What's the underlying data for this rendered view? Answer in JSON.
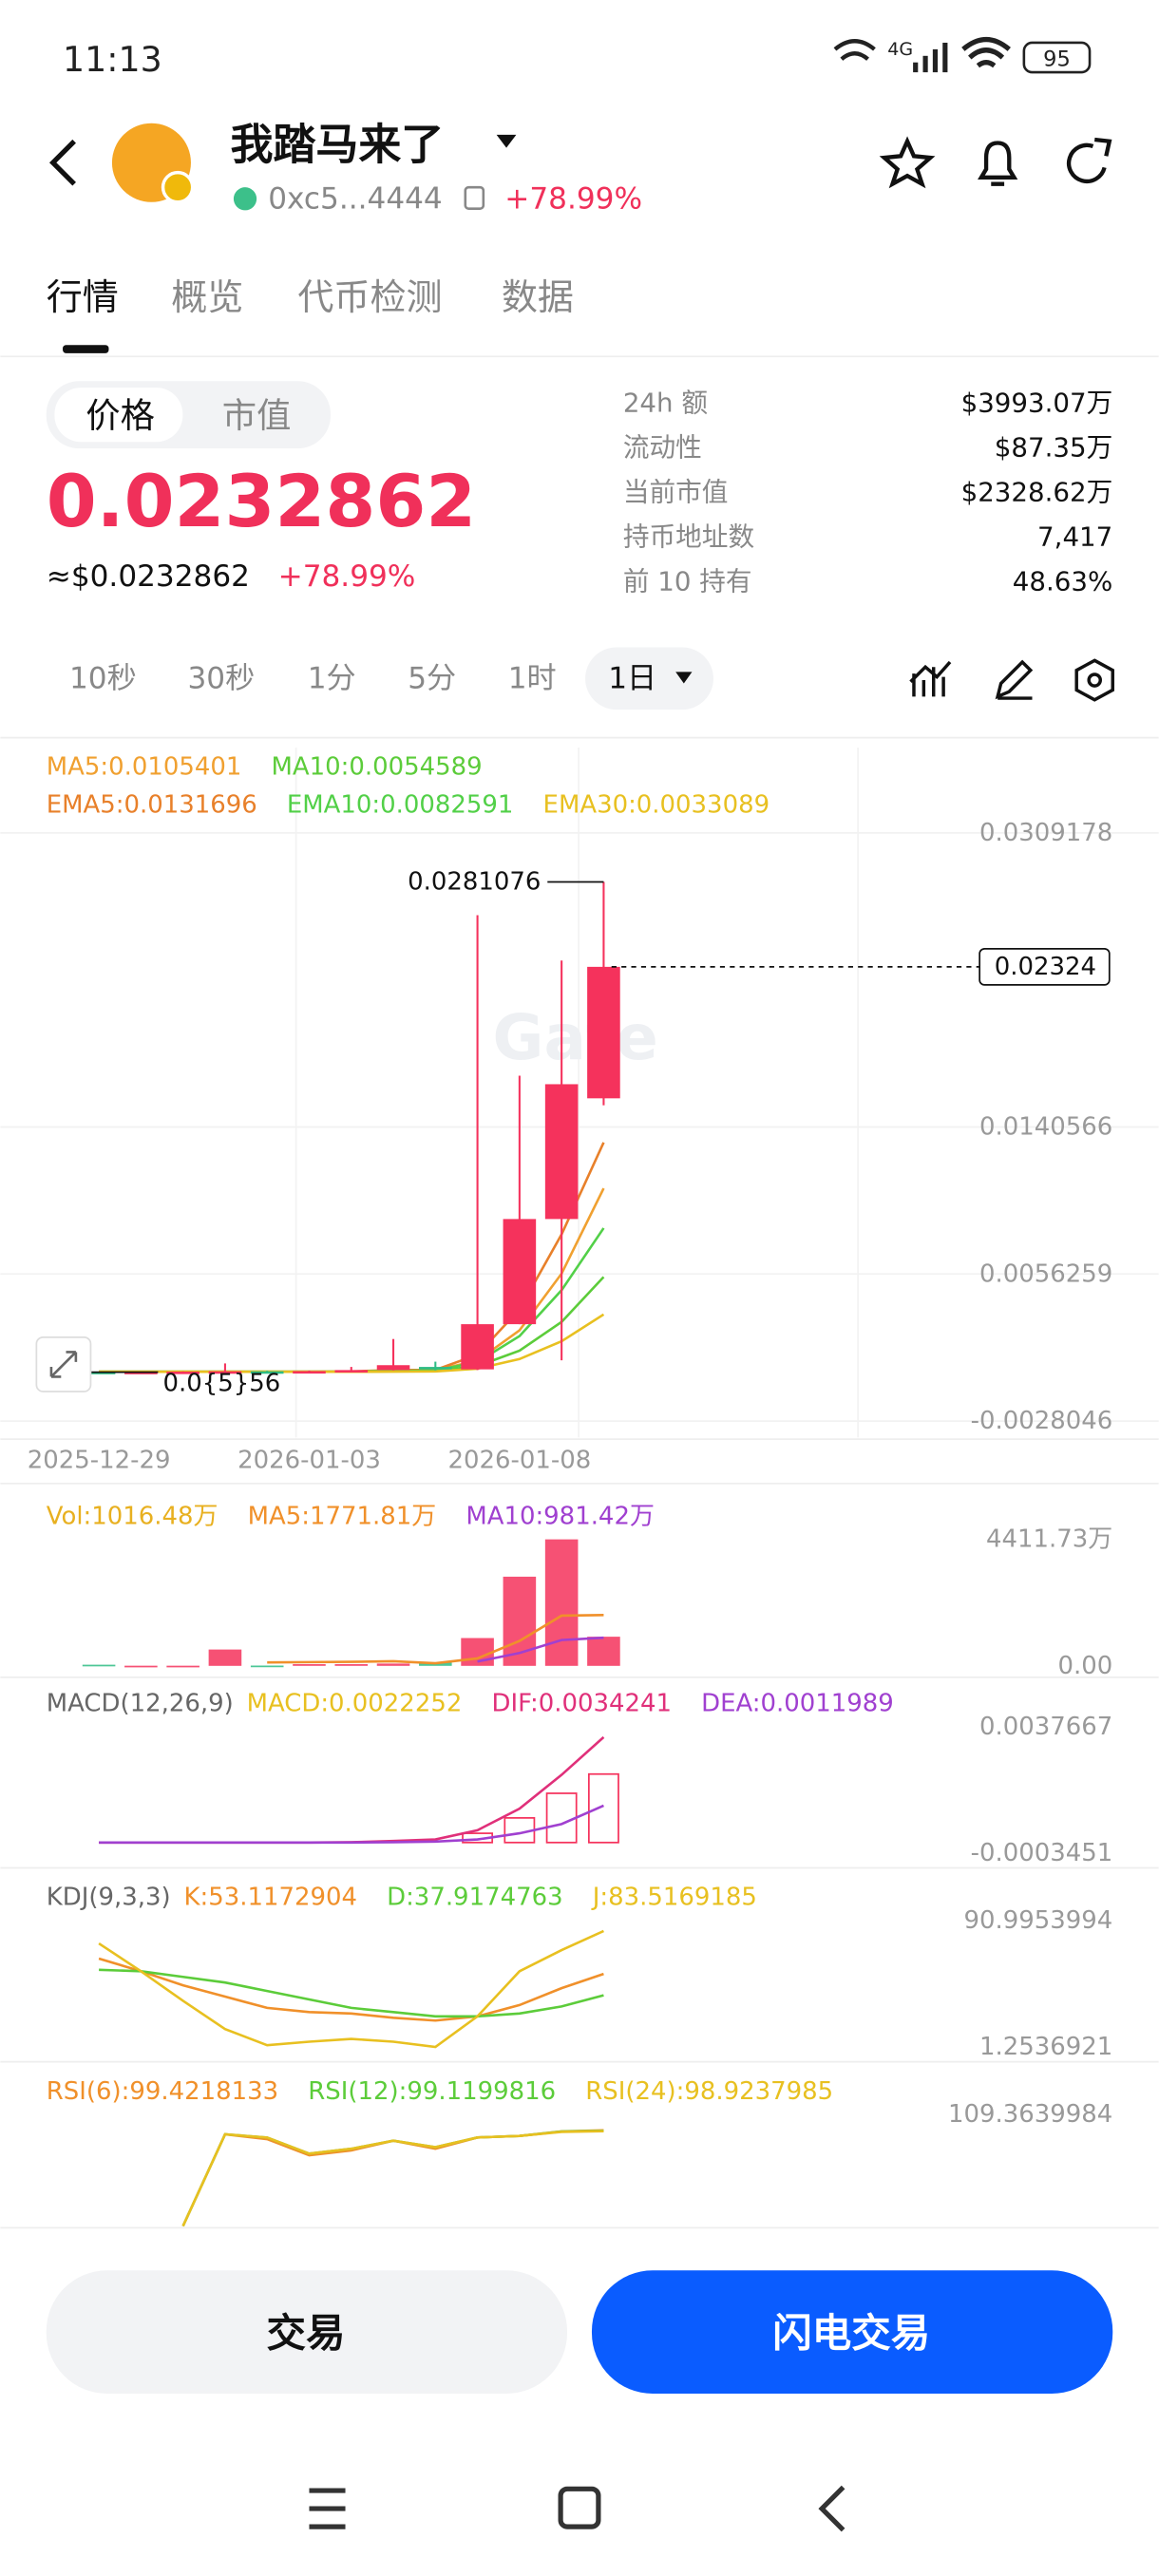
{
  "status_bar": {
    "time": "11:13",
    "network": "4G",
    "battery": "95"
  },
  "header": {
    "token_name": "我踏马来了",
    "address": "0xc5...4444",
    "change": "+78.99%"
  },
  "tabs": [
    "行情",
    "概览",
    "代币检测",
    "数据"
  ],
  "price_toggle": [
    "价格",
    "市值"
  ],
  "price": "0.0232862",
  "price_usd": "≈$0.0232862",
  "price_change": "+78.99%",
  "stats": [
    {
      "label": "24h  额",
      "value": "$3993.07万"
    },
    {
      "label": "流动性",
      "value": "$87.35万"
    },
    {
      "label": "当前市值",
      "value": "$2328.62万"
    },
    {
      "label": "持币地址数",
      "value": "7,417"
    },
    {
      "label": "前 10 持有",
      "value": "48.63%"
    }
  ],
  "intervals": [
    "10秒",
    "30秒",
    "1分",
    "5分",
    "1时",
    "1日"
  ],
  "chart_data": [
    {
      "type": "candlestick",
      "categories": [
        "2025-12-29",
        null,
        null,
        null,
        null,
        "2026-01-03",
        null,
        null,
        null,
        null,
        "2026-01-08",
        null,
        null
      ],
      "open": [
        2e-05,
        1.5e-05,
        2e-05,
        3e-05,
        5e-05,
        4e-05,
        6e-05,
        0.00012,
        0.0003,
        0.00016,
        0.00275,
        0.00878,
        0.0157
      ],
      "high": [
        3e-05,
        3e-05,
        4e-05,
        0.0005,
        8e-05,
        9e-05,
        0.0003,
        0.0019,
        0.0006,
        0.0262,
        0.017,
        0.0236,
        0.0281076
      ],
      "low": [
        5.6e-07,
        1e-05,
        1e-05,
        2e-05,
        3e-05,
        3e-05,
        5e-05,
        0.0001,
        0.0001,
        0.00012,
        0.00275,
        0.00068,
        0.0153
      ],
      "close": [
        1.5e-05,
        2e-05,
        3e-05,
        5e-05,
        4e-05,
        6e-05,
        0.00012,
        0.0004,
        0.00016,
        0.00275,
        0.00878,
        0.01651,
        0.02324
      ],
      "up_color": "#f5325c",
      "down_color": "#2ebd85",
      "ylim": [
        -0.0037472,
        0.0358161
      ],
      "yticks": [
        0.0309178,
        0.0140566,
        0.0056259,
        -0.0028046
      ],
      "series": [
        {
          "name": "MA5:0.0105401",
          "color": "#f0a030",
          "values": [
            2e-05,
            2e-05,
            2e-05,
            2e-05,
            2e-05,
            2e-05,
            2e-05,
            8e-05,
            0.00011,
            0.00066,
            0.0024,
            0.00565,
            0.0105401
          ]
        },
        {
          "name": "MA10:0.0054589",
          "color": "#5ccc3a",
          "values": [
            2e-05,
            2e-05,
            2e-05,
            2e-05,
            2e-05,
            2e-05,
            2e-05,
            5e-05,
            7e-05,
            0.00035,
            0.00123,
            0.00288,
            0.0054589
          ]
        },
        {
          "name": "EMA5:0.0131696",
          "color": "#e8802a",
          "values": [
            2e-05,
            2e-05,
            2e-05,
            2e-05,
            2e-05,
            2e-05,
            4e-05,
            0.00012,
            0.00013,
            0.001,
            0.0036,
            0.0079,
            0.0131696
          ]
        },
        {
          "name": "EMA10:0.0082591",
          "color": "#52d048",
          "values": [
            2e-05,
            2e-05,
            2e-05,
            2e-05,
            2e-05,
            2e-05,
            3e-05,
            7e-05,
            9e-05,
            0.00058,
            0.00207,
            0.0047,
            0.0082591
          ]
        },
        {
          "name": "EMA30:0.0033089",
          "color": "#e8c020",
          "values": [
            2e-05,
            2e-05,
            2e-05,
            2e-05,
            2e-05,
            2e-05,
            2e-05,
            3e-05,
            4e-05,
            0.0002,
            0.00075,
            0.00177,
            0.0033089
          ]
        }
      ],
      "max_price": 0.0281076,
      "min_price": {
        "value": 5.6e-07,
        "label": "0.0{5}56"
      },
      "last_price": 0.02324,
      "watermark": "Gate"
    },
    {
      "type": "volume",
      "ylim": [
        0,
        4411.73
      ],
      "yticks": [
        {
          "value": 4411.73,
          "label": "4411.73万"
        },
        {
          "value": 0,
          "label": "0.00"
        }
      ],
      "series": [
        {
          "name": "Vol:1016.48万",
          "type": "bar",
          "color": "#e8b020",
          "values": [
            40,
            5,
            5,
            570,
            10,
            60,
            60,
            80,
            120,
            970,
            3110,
            4411.73,
            1016.48
          ]
        },
        {
          "name": "MA5:1771.81万",
          "color": "#f0902a",
          "values": [
            null,
            null,
            null,
            null,
            120,
            130,
            140,
            160,
            90,
            260,
            870,
            1750,
            1771.81
          ]
        },
        {
          "name": "MA10:981.42万",
          "color": "#a040d0",
          "values": [
            null,
            null,
            null,
            null,
            null,
            null,
            null,
            null,
            null,
            150,
            450,
            900,
            981.42
          ]
        }
      ]
    },
    {
      "type": "macd",
      "title": "MACD(12,26,9)",
      "ylim": [
        -0.0003451,
        0.0037667
      ],
      "yticks": [
        0.0037667,
        -0.0003451
      ],
      "series": [
        {
          "name": "MACD:0.0022252",
          "type": "bar",
          "color": "#e8c020",
          "values": [
            null,
            null,
            null,
            null,
            null,
            null,
            null,
            null,
            null,
            0.0003,
            0.0008,
            0.0016,
            0.0022252
          ]
        },
        {
          "name": "DIF:0.0034241",
          "color": "#e0307a",
          "values": [
            0,
            0,
            0,
            0,
            0,
            0,
            1e-05,
            5e-05,
            0.0001,
            0.0004,
            0.0011,
            0.0022,
            0.0034241
          ]
        },
        {
          "name": "DEA:0.0011989",
          "color": "#a040d0",
          "values": [
            0,
            0,
            0,
            0,
            0,
            0,
            0,
            1e-05,
            3e-05,
            0.0001,
            0.0003,
            0.0006,
            0.0011989
          ]
        }
      ]
    },
    {
      "type": "kdj",
      "title": "KDJ(9,3,3)",
      "ylim": [
        1.2536921,
        90.9953994
      ],
      "yticks": [
        90.9953994,
        1.2536921
      ],
      "series": [
        {
          "name": "K:53.1172904",
          "color": "#f0902a",
          "values": [
            64,
            55,
            45,
            37,
            29,
            26,
            25,
            22,
            20,
            23,
            31,
            43,
            53.1172904
          ]
        },
        {
          "name": "D:37.9174763",
          "color": "#5ccc3a",
          "values": [
            56,
            55,
            51,
            47,
            41,
            35,
            29,
            26,
            23,
            23,
            25,
            30,
            37.9174763
          ]
        },
        {
          "name": "J:83.5169185",
          "color": "#e8c020",
          "values": [
            74.7,
            55,
            34,
            14,
            2.5,
            5,
            7,
            5,
            1.3,
            23,
            55,
            70,
            83.5169185
          ]
        }
      ]
    },
    {
      "type": "rsi",
      "ylim": [
        40,
        134.87
      ],
      "yticks": [
        109.3639984
      ],
      "series": [
        {
          "name": "RSI(6):99.4218133",
          "color": "#f0902a",
          "values": [
            null,
            null,
            40,
            97,
            94,
            84,
            87,
            93,
            88,
            95,
            96,
            98.8,
            99.4218133
          ]
        },
        {
          "name": "RSI(12):99.1199816",
          "color": "#5ccc3a",
          "values": [
            null,
            null,
            40,
            97,
            95,
            85,
            88,
            93,
            89,
            95,
            96,
            98.7,
            99.1199816
          ]
        },
        {
          "name": "RSI(24):98.9237985",
          "color": "#e8c020",
          "values": [
            null,
            null,
            40,
            97,
            95,
            85,
            88,
            93,
            89,
            95,
            96,
            98.5,
            98.9237985
          ]
        }
      ]
    }
  ],
  "buttons": [
    "交易",
    "闪电交易"
  ]
}
